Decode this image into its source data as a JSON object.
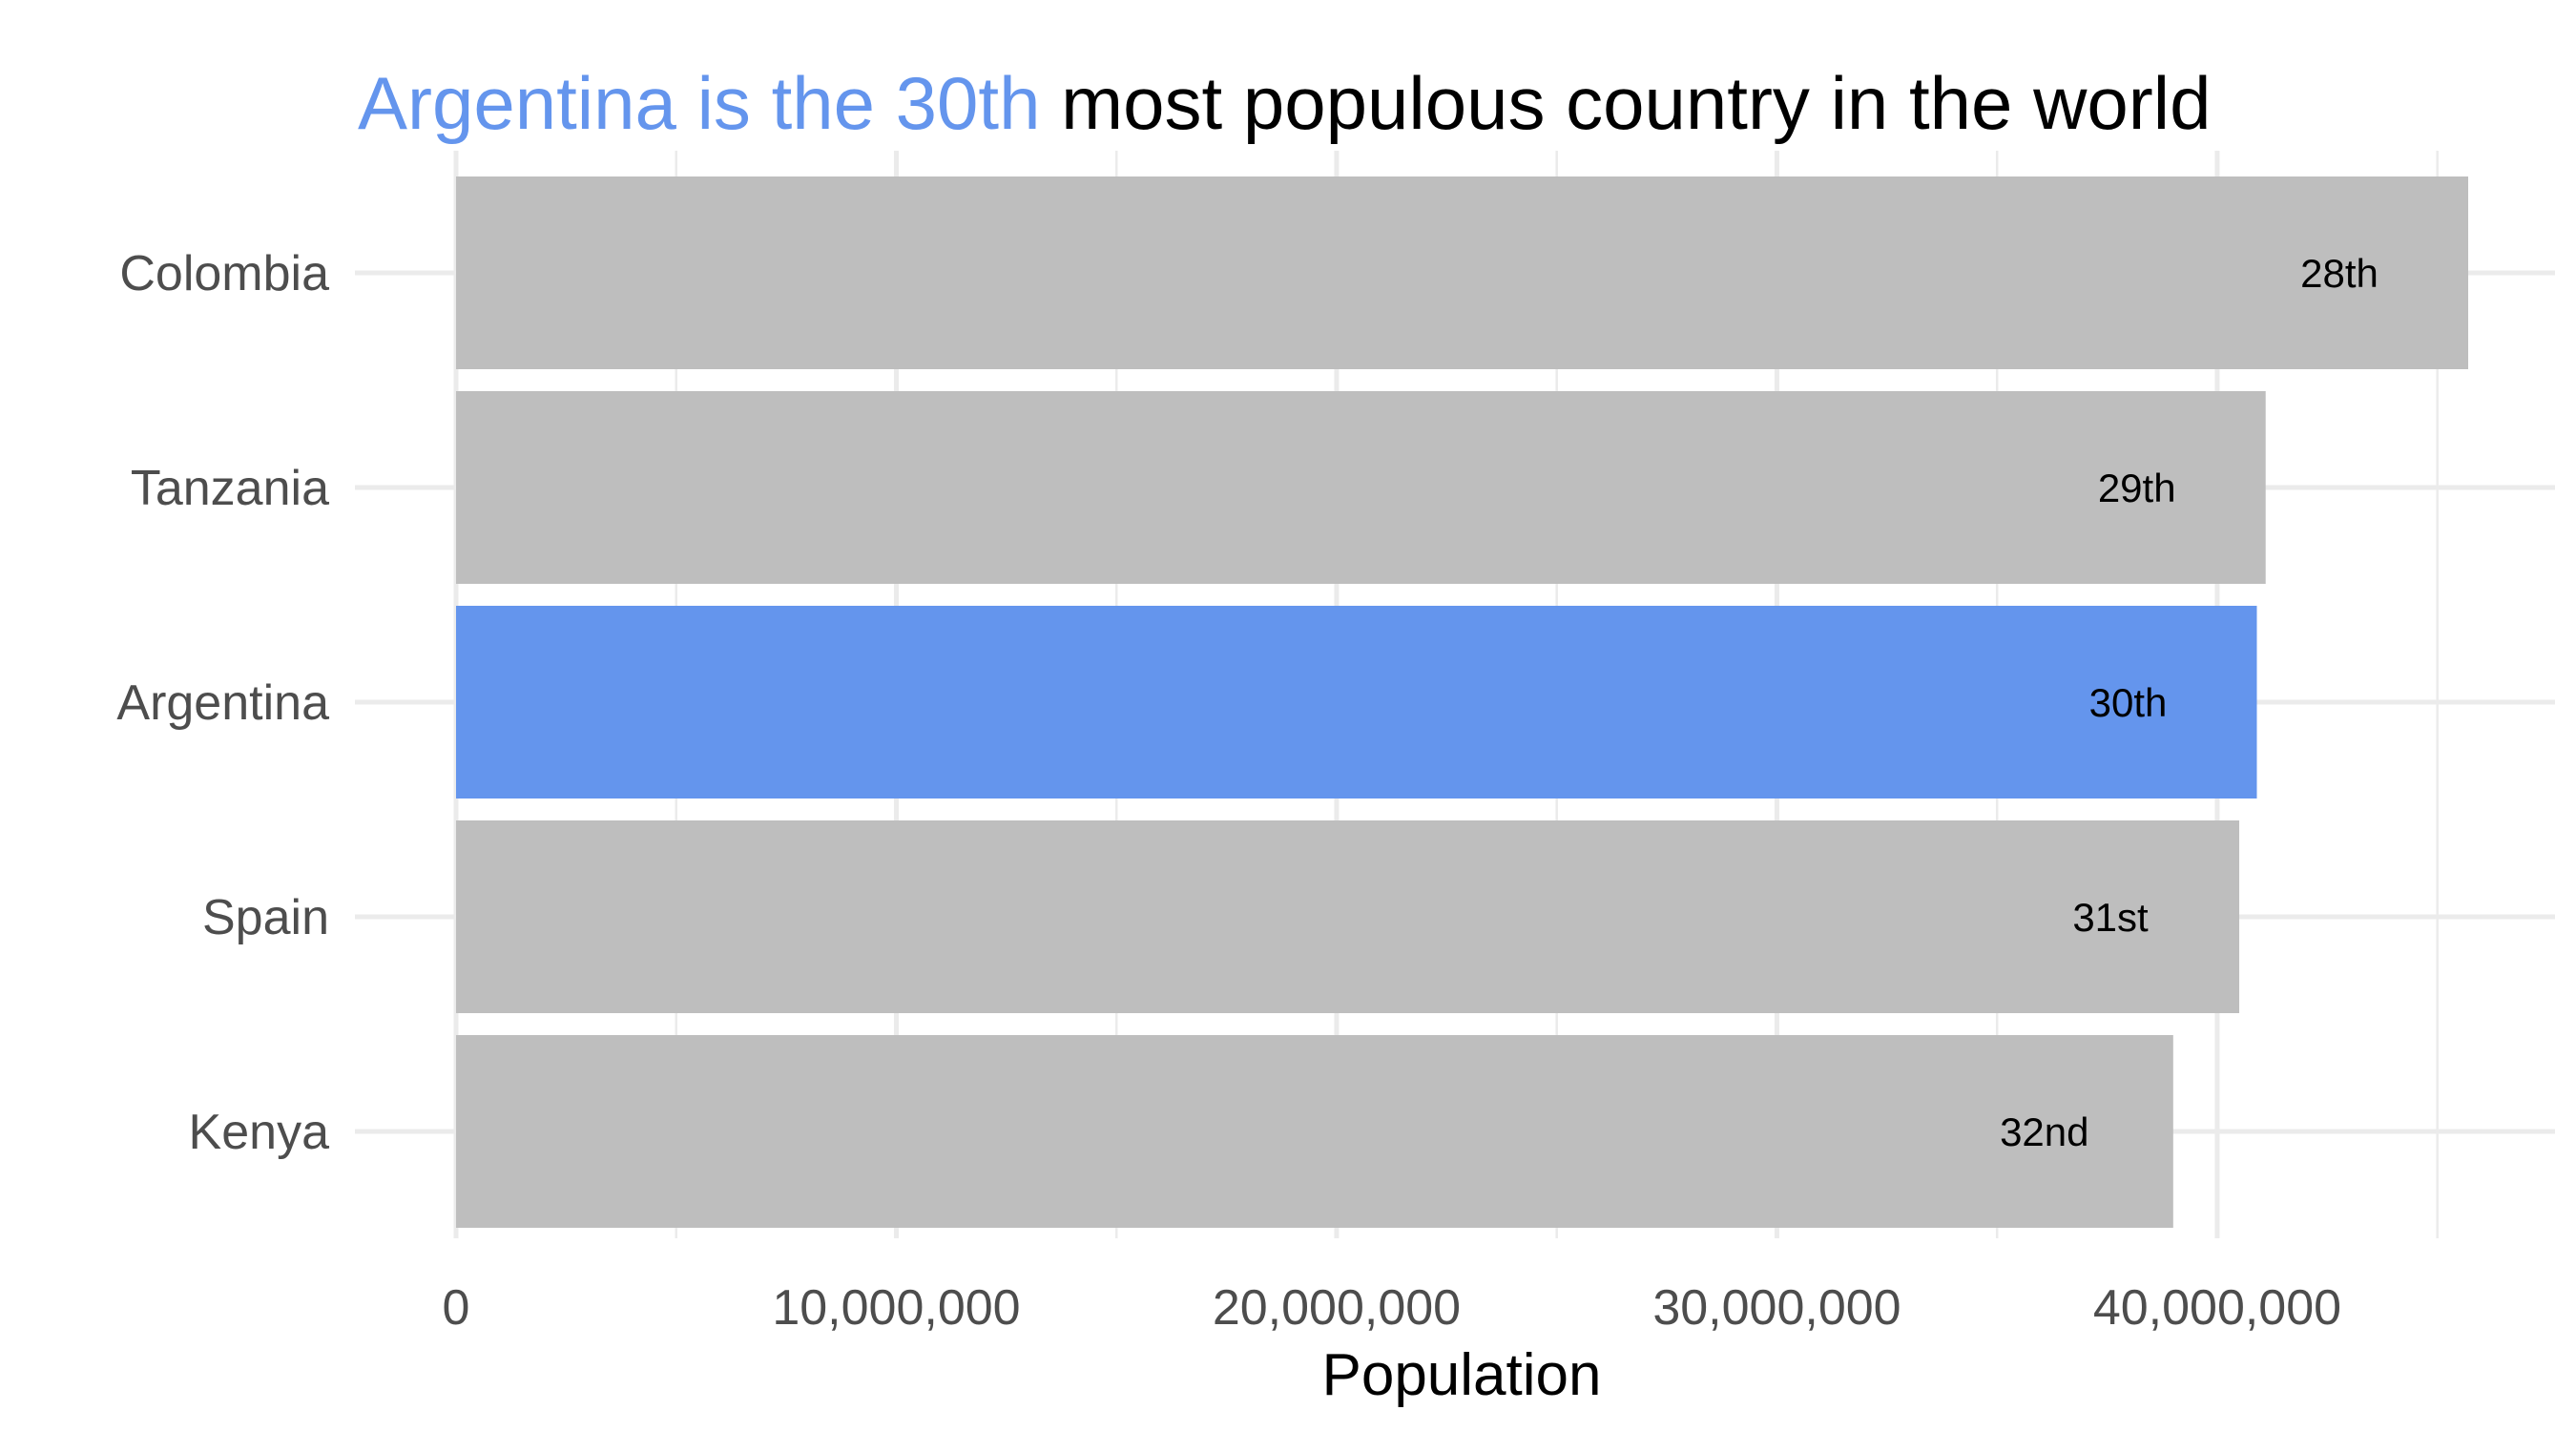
{
  "chart_data": {
    "type": "bar",
    "orientation": "horizontal",
    "title": {
      "highlight": "Argentina is the 30th",
      "rest": " most populous country in the world"
    },
    "xlabel": "Population",
    "ylabel": "",
    "categories": [
      "Colombia",
      "Tanzania",
      "Argentina",
      "Spain",
      "Kenya"
    ],
    "values": [
      45700000,
      41100000,
      40900000,
      40500000,
      39000000
    ],
    "ranks": [
      "28th",
      "29th",
      "30th",
      "31st",
      "32nd"
    ],
    "highlight_category": "Argentina",
    "xlim": [
      0,
      45700000
    ],
    "xticks": [
      0,
      10000000,
      20000000,
      30000000,
      40000000
    ],
    "xtick_labels": [
      "0",
      "10,000,000",
      "20,000,000",
      "30,000,000",
      "40,000,000"
    ],
    "grid": true,
    "legend": "none",
    "colors": {
      "highlight": "#6495ed",
      "default": "#bebebe"
    }
  }
}
